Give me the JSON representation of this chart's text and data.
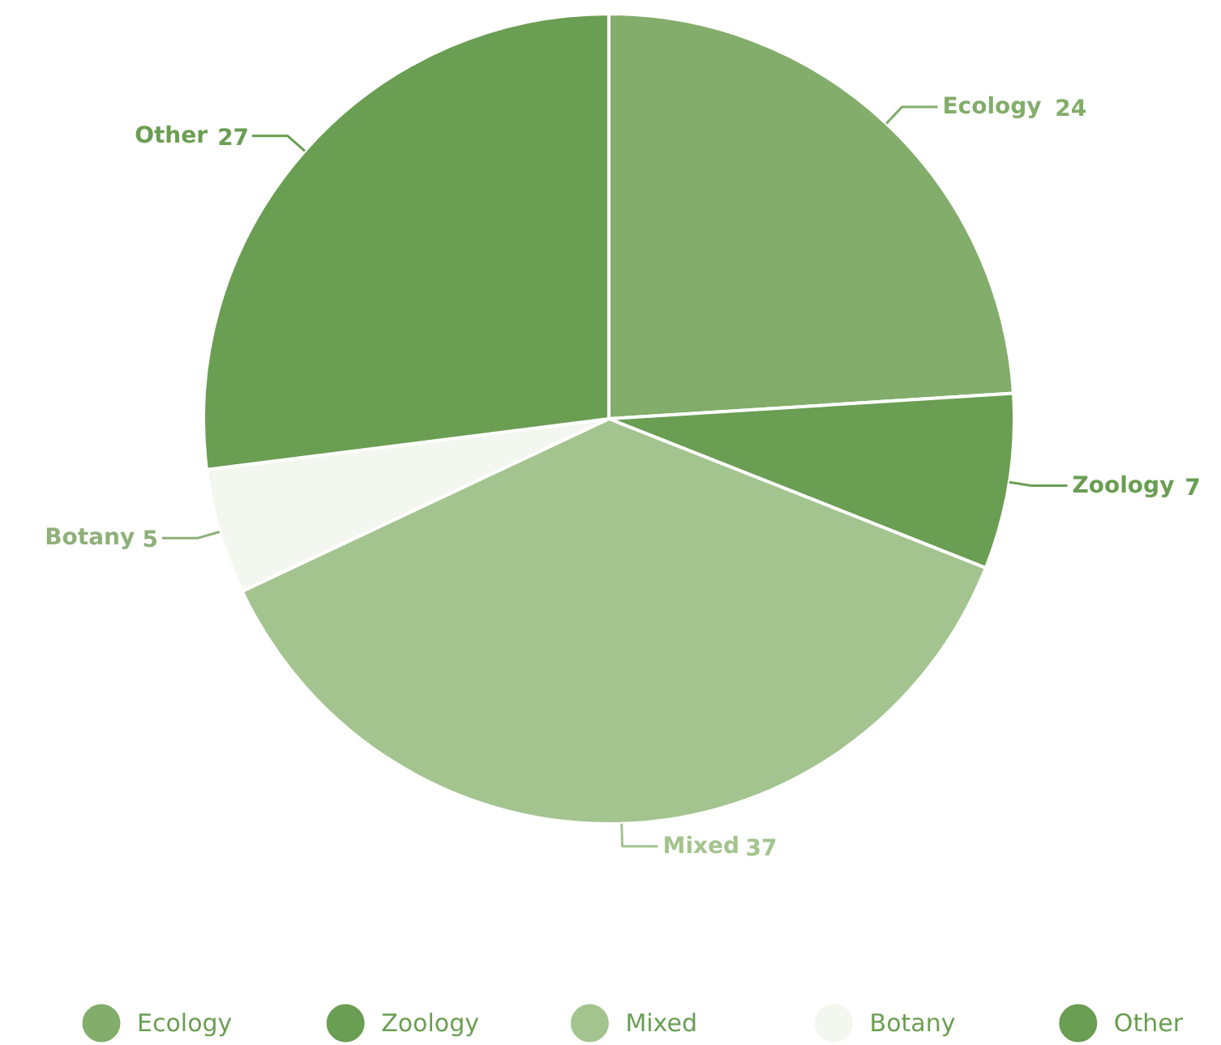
{
  "chart_data": {
    "type": "pie",
    "categories": [
      "Ecology",
      "Zoology",
      "Mixed",
      "Botany",
      "Other"
    ],
    "values": [
      24,
      7,
      37,
      5,
      27
    ],
    "colors": [
      "#82ad6a",
      "#6a9e52",
      "#a3c48e",
      "#f3f7ef",
      "#6a9e52"
    ],
    "data_labels": true,
    "legend": "bottom"
  }
}
